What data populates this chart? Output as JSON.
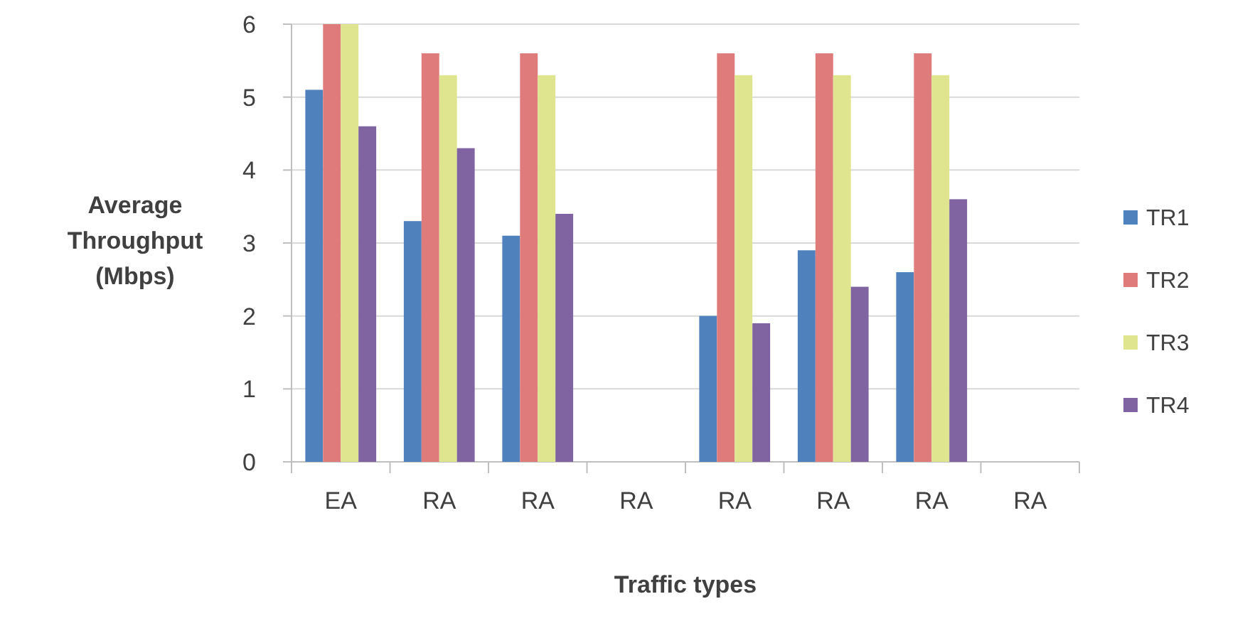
{
  "chart_data": {
    "type": "bar",
    "xlabel": "Traffic types",
    "ylabel": "Average Throughput (Mbps)",
    "categories": [
      "EA",
      "RA",
      "RA",
      "RA",
      "RA",
      "RA",
      "RA",
      "RA"
    ],
    "series": [
      {
        "name": "TR1",
        "color": "#4f81bd",
        "values": [
          5.1,
          3.3,
          3.1,
          0,
          2.0,
          2.9,
          2.6,
          0
        ]
      },
      {
        "name": "TR2",
        "color": "#e07b7b",
        "values": [
          6.0,
          5.6,
          5.6,
          0,
          5.6,
          5.6,
          5.6,
          0
        ]
      },
      {
        "name": "TR3",
        "color": "#dfe58f",
        "values": [
          6.0,
          5.3,
          5.3,
          0,
          5.3,
          5.3,
          5.3,
          0
        ]
      },
      {
        "name": "TR4",
        "color": "#8064a2",
        "values": [
          4.6,
          4.3,
          3.4,
          0,
          1.9,
          2.4,
          3.6,
          0
        ]
      }
    ],
    "ylim": [
      0,
      6
    ],
    "yticks": [
      0,
      1,
      2,
      3,
      4,
      5,
      6
    ],
    "grid": "y",
    "legend": "right"
  }
}
